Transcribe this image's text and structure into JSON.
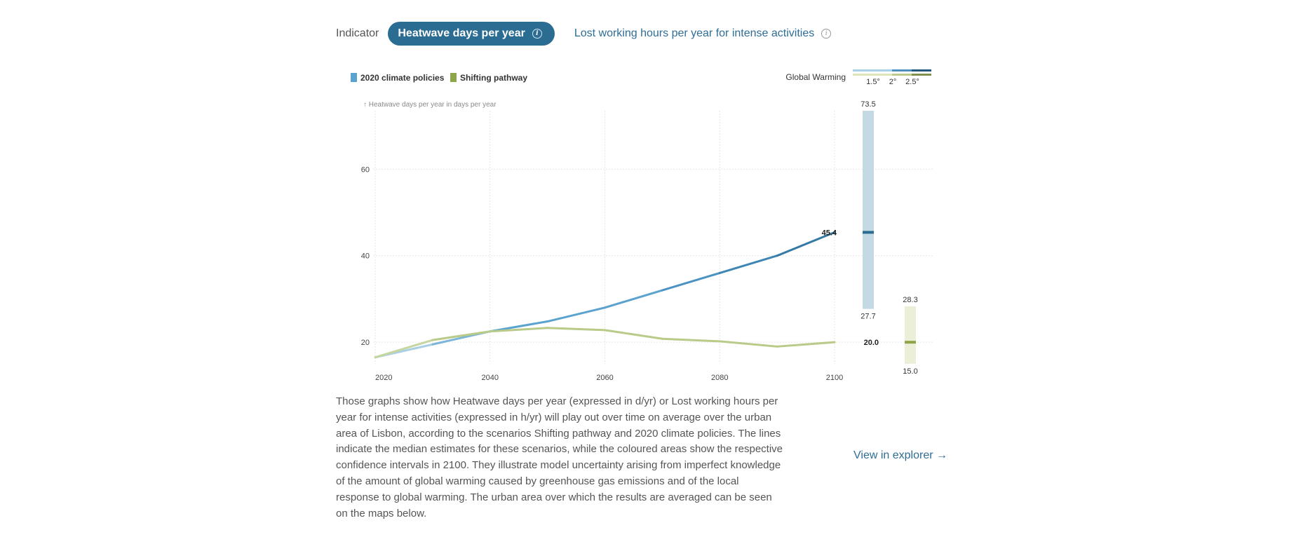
{
  "indicator": {
    "label": "Indicator",
    "tabs": [
      {
        "label": "Heatwave days per year",
        "active": true,
        "info_icon": "info-icon"
      },
      {
        "label": "Lost working hours per year for intense activities",
        "active": false,
        "info_icon": "info-icon"
      }
    ]
  },
  "colors": {
    "accent": "#2b6c93",
    "link": "#2e6d96",
    "policies": "#5ba3cf",
    "policies_dark": "#2b6c93",
    "policies_band": "#c3d9e4",
    "shifting": "#b8cb88",
    "shifting_marker": "#8ea64a",
    "shifting_band": "#ebefd7"
  },
  "chart_data": {
    "type": "line",
    "ylabel": "↑ Heatwave days per year in days per year",
    "x": [
      2020,
      2030,
      2040,
      2050,
      2060,
      2070,
      2080,
      2090,
      2100
    ],
    "x_ticks": [
      "2020",
      "2040",
      "2060",
      "2080",
      "2100"
    ],
    "y_ticks": [
      "20",
      "40",
      "60"
    ],
    "ylim": [
      15,
      73.5
    ],
    "grid": true,
    "legend_position": "top-left",
    "series": [
      {
        "name": "2020 climate policies",
        "values": [
          16.5,
          19.5,
          22.5,
          24.8,
          28.0,
          32.0,
          36.0,
          40.0,
          45.4
        ]
      },
      {
        "name": "Shifting pathway",
        "values": [
          16.5,
          20.5,
          22.5,
          23.3,
          22.8,
          20.8,
          20.2,
          19.0,
          20.0
        ]
      }
    ],
    "intervals_2100": [
      {
        "series": "2020 climate policies",
        "median": "45.4",
        "high": "73.5",
        "low": "27.7"
      },
      {
        "series": "Shifting pathway",
        "median": "20.0",
        "high": "28.3",
        "low": "15.0"
      }
    ],
    "global_warming": {
      "label": "Global Warming",
      "levels": [
        "1.5°",
        "2°",
        "2.5°"
      ]
    }
  },
  "description": "Those graphs show how Heatwave days per year (expressed in d/yr) or Lost working hours per year for intense activities (expressed in h/yr) will play out over time on average over the urban area of Lisbon, according to the scenarios Shifting pathway and 2020 climate policies. The lines indicate the median estimates for these scenarios, while the coloured areas show the respective confidence intervals in 2100. They illustrate model uncertainty arising from imperfect knowledge of the amount of global warming caused by greenhouse gas emissions and of the local response to global warming. The urban area over which the results are averaged can be seen on the maps below.",
  "explorer_link": "View in explorer →"
}
